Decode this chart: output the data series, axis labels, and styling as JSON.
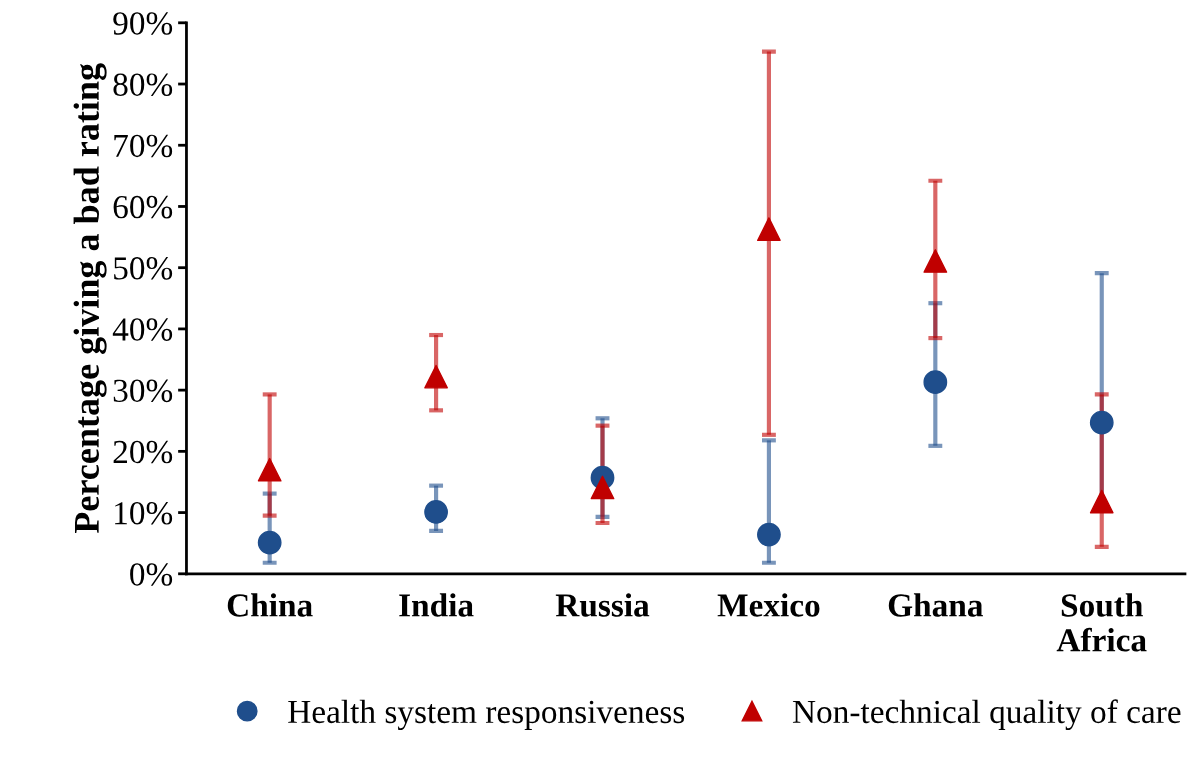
{
  "chart_data": {
    "type": "scatter",
    "ylabel": "Percentage giving a bad rating",
    "categories": [
      "China",
      "India",
      "Russia",
      "Mexico",
      "Ghana",
      "South\nAfrica"
    ],
    "series": [
      {
        "name": "Health system responsiveness",
        "color": "#1f4e8c",
        "marker": "circle",
        "values": [
          5.1,
          10.1,
          15.7,
          6.4,
          31.3,
          24.7
        ],
        "errors": [
          [
            1.8,
            13.1
          ],
          [
            7.0,
            14.4
          ],
          [
            9.3,
            25.4
          ],
          [
            1.8,
            21.8
          ],
          [
            20.9,
            44.2
          ],
          [
            10.3,
            49.1
          ]
        ]
      },
      {
        "name": "Non-technical quality of care",
        "color": "#c00000",
        "marker": "triangle",
        "values": [
          17.0,
          32.2,
          14.1,
          56.3,
          51.1,
          11.8
        ],
        "errors": [
          [
            9.5,
            29.3
          ],
          [
            26.7,
            39.0
          ],
          [
            8.3,
            24.2
          ],
          [
            22.7,
            85.3
          ],
          [
            38.5,
            64.2
          ],
          [
            4.4,
            29.3
          ]
        ]
      }
    ],
    "ylim": [
      0,
      90
    ],
    "yticks": [
      {
        "value": 0,
        "label": "0%"
      },
      {
        "value": 10,
        "label": "10%"
      },
      {
        "value": 20,
        "label": "20%"
      },
      {
        "value": 30,
        "label": "30%"
      },
      {
        "value": 40,
        "label": "40%"
      },
      {
        "value": 50,
        "label": "50%"
      },
      {
        "value": 60,
        "label": "60%"
      },
      {
        "value": 70,
        "label": "70%"
      },
      {
        "value": 80,
        "label": "80%"
      },
      {
        "value": 90,
        "label": "90%"
      }
    ],
    "grid": false,
    "legend": "bottom"
  }
}
